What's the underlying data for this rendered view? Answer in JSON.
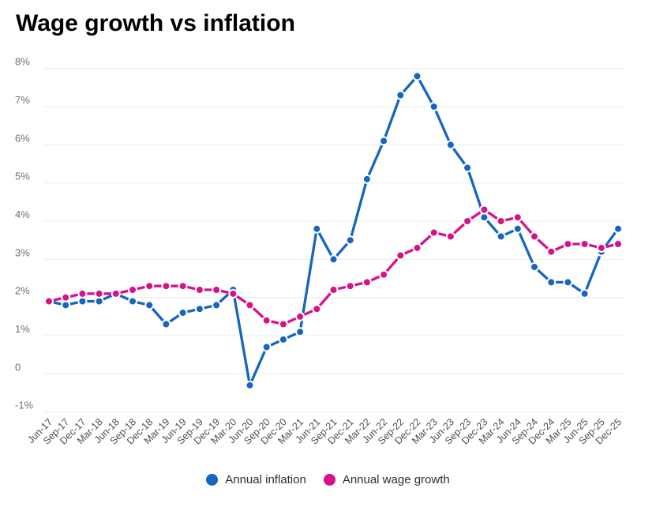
{
  "title": "Wage growth vs inflation",
  "chart_data": {
    "type": "line",
    "title": "Wage growth vs inflation",
    "categories": [
      "Jun-17",
      "Sep-17",
      "Dec-17",
      "Mar-18",
      "Jun-18",
      "Sep-18",
      "Dec-18",
      "Mar-19",
      "Jun-19",
      "Sep-19",
      "Dec-19",
      "Mar-20",
      "Jun-20",
      "Sep-20",
      "Dec-20",
      "Mar-21",
      "Jun-21",
      "Sep-21",
      "Dec-21",
      "Mar-22",
      "Jun-22",
      "Sep-22",
      "Dec-22",
      "Mar-23",
      "Jun-23",
      "Sep-23",
      "Dec-23",
      "Mar-24",
      "Jun-24",
      "Sep-24",
      "Dec-24",
      "Mar-25",
      "Jun-25",
      "Sep-25",
      "Dec-25"
    ],
    "series": [
      {
        "name": "Annual inflation",
        "color": "#1565c1",
        "values": [
          1.9,
          1.8,
          1.9,
          1.9,
          2.1,
          1.9,
          1.8,
          1.3,
          1.6,
          1.7,
          1.8,
          2.2,
          -0.3,
          0.7,
          0.9,
          1.1,
          3.8,
          3.0,
          3.5,
          5.1,
          6.1,
          7.3,
          7.8,
          7.0,
          6.0,
          5.4,
          4.1,
          3.6,
          3.8,
          2.8,
          2.4,
          2.4,
          2.1,
          3.2,
          3.8
        ]
      },
      {
        "name": "Annual wage growth",
        "color": "#d6118a",
        "values": [
          1.9,
          2.0,
          2.1,
          2.1,
          2.1,
          2.2,
          2.3,
          2.3,
          2.3,
          2.2,
          2.2,
          2.1,
          1.8,
          1.4,
          1.3,
          1.5,
          1.7,
          2.2,
          2.3,
          2.4,
          2.6,
          3.1,
          3.3,
          3.7,
          3.6,
          4.0,
          4.3,
          4.0,
          4.1,
          3.6,
          3.2,
          3.4,
          3.4,
          3.3,
          3.4
        ]
      }
    ],
    "yticks": [
      "8%",
      "7%",
      "6%",
      "5%",
      "4%",
      "3%",
      "2%",
      "1%",
      "0",
      "-1%"
    ],
    "ylim": [
      -1,
      8
    ],
    "xlabel": "",
    "ylabel": "",
    "grid": true,
    "grid_color": "#ebebeb",
    "axis_label_color": "#6f6f6f",
    "x_label_color": "#4d4d4d",
    "legend_position": "bottom"
  }
}
